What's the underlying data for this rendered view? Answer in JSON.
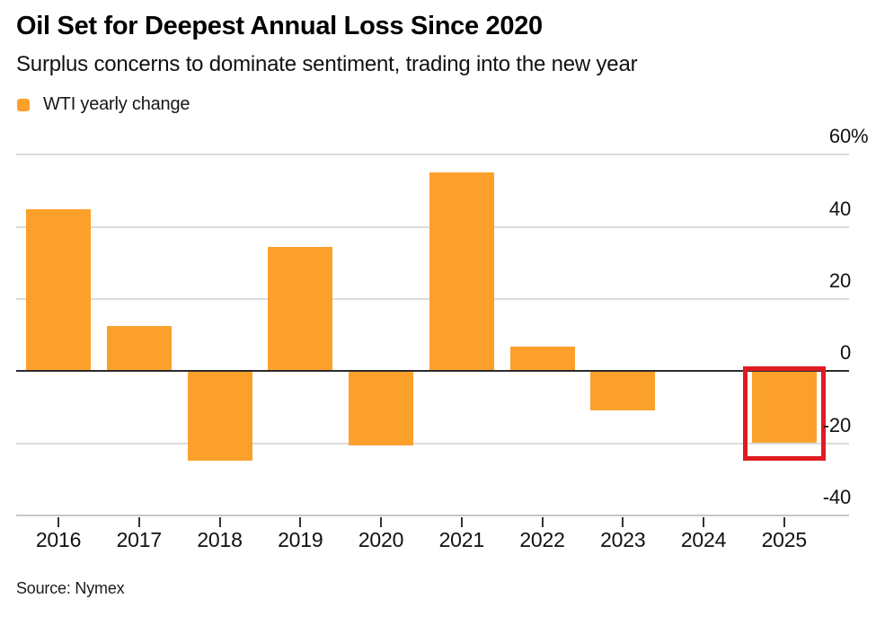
{
  "header": {
    "title": "Oil Set for Deepest Annual Loss Since 2020",
    "subtitle": "Surplus concerns to dominate sentiment, trading into the new year"
  },
  "legend": {
    "label": "WTI yearly change"
  },
  "source": "Source: Nymex",
  "colors": {
    "bar": "#FCA02C",
    "highlight_box": "#E01B22",
    "grid": "#DBDBDB",
    "zero_line": "#2B2B2B",
    "axis_line": "#C6C6C6",
    "tick_mark": "#333333"
  },
  "chart_data": {
    "type": "bar",
    "title": "Oil Set for Deepest Annual Loss Since 2020",
    "subtitle": "Surplus concerns to dominate sentiment, trading into the new year",
    "categories": [
      "2016",
      "2017",
      "2018",
      "2019",
      "2020",
      "2021",
      "2022",
      "2023",
      "2024",
      "2025"
    ],
    "series": [
      {
        "name": "WTI yearly change",
        "values": [
          45.0,
          12.5,
          -24.9,
          34.5,
          -20.6,
          55.2,
          6.8,
          -11.0,
          0.1,
          -19.8
        ]
      }
    ],
    "xlabel": "",
    "ylabel": "",
    "unit": "%",
    "ylim": [
      -40,
      60
    ],
    "yticks": [
      {
        "value": 60,
        "label": "60",
        "suffix": "%"
      },
      {
        "value": 40,
        "label": "40",
        "suffix": ""
      },
      {
        "value": 20,
        "label": "20",
        "suffix": ""
      },
      {
        "value": 0,
        "label": "0",
        "suffix": ""
      },
      {
        "value": -20,
        "label": "-20",
        "suffix": ""
      },
      {
        "value": -40,
        "label": "-40",
        "suffix": ""
      }
    ],
    "grid": "horizontal",
    "legend_position": "top-left",
    "highlighted_category": "2025",
    "source": "Source: Nymex"
  }
}
